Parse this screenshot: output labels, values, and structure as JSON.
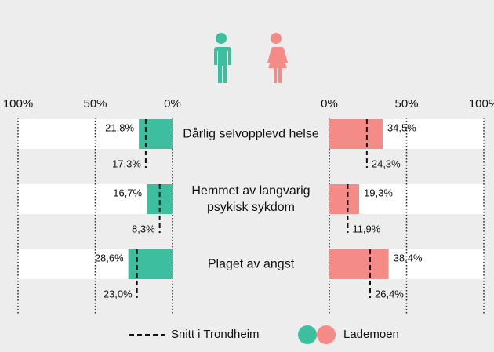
{
  "chart_data": {
    "type": "butterfly",
    "categories": [
      "Dårlig selvopplevd helse",
      "Hemmet av langvarig psykisk sykdom",
      "Plaget av angst"
    ],
    "xlim": [
      0,
      100
    ],
    "xticks": [
      {
        "value": 100,
        "label": "100%"
      },
      {
        "value": 50,
        "label": "50%"
      },
      {
        "value": 0,
        "label": "0%"
      }
    ],
    "series": [
      {
        "color": "#3dbf9f",
        "values": [
          21.8,
          16.7,
          28.6
        ],
        "value_labels": [
          "21,8%",
          "16,7%",
          "28,6%"
        ],
        "average": [
          17.3,
          8.3,
          23.0
        ],
        "average_labels": [
          "17,3%",
          "8,3%",
          "23,0%"
        ]
      },
      {
        "color": "#f48b86",
        "values": [
          34.5,
          19.3,
          38.4
        ],
        "value_labels": [
          "34,5%",
          "19,3%",
          "38,4%"
        ],
        "average": [
          24.3,
          11.9,
          26.4
        ],
        "average_labels": [
          "24,3%",
          "11,9%",
          "26,4%"
        ]
      }
    ],
    "average_legend": "Snitt i Trondheim",
    "bar_legend": "Lademoen"
  }
}
